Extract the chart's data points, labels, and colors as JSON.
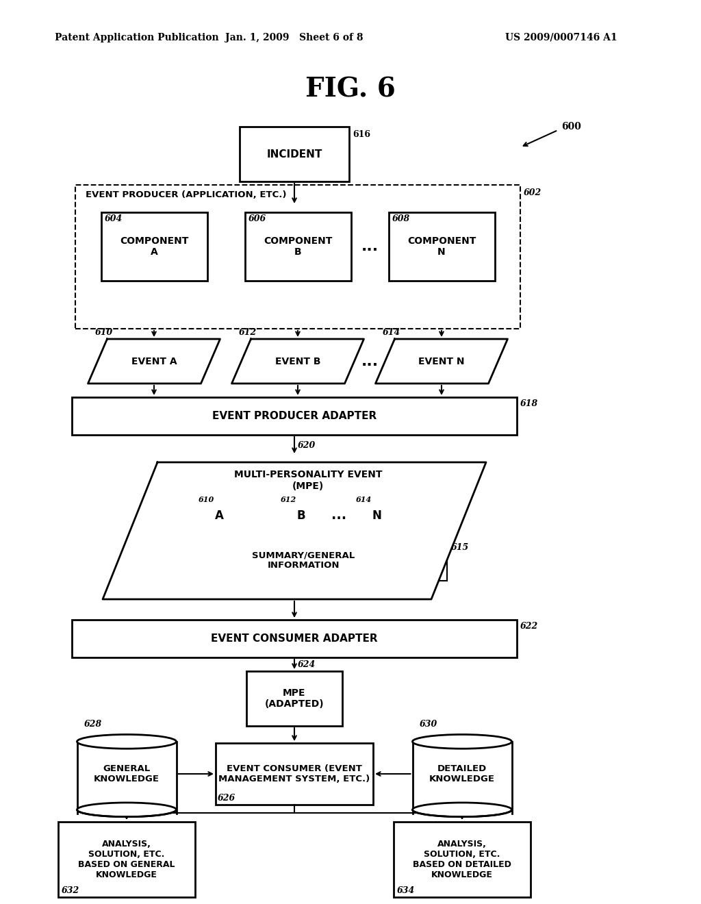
{
  "title": "FIG. 6",
  "header_left": "Patent Application Publication",
  "header_center": "Jan. 1, 2009   Sheet 6 of 8",
  "header_right": "US 2009/0007146 A1",
  "bg_color": "#ffffff",
  "line_color": "#000000"
}
